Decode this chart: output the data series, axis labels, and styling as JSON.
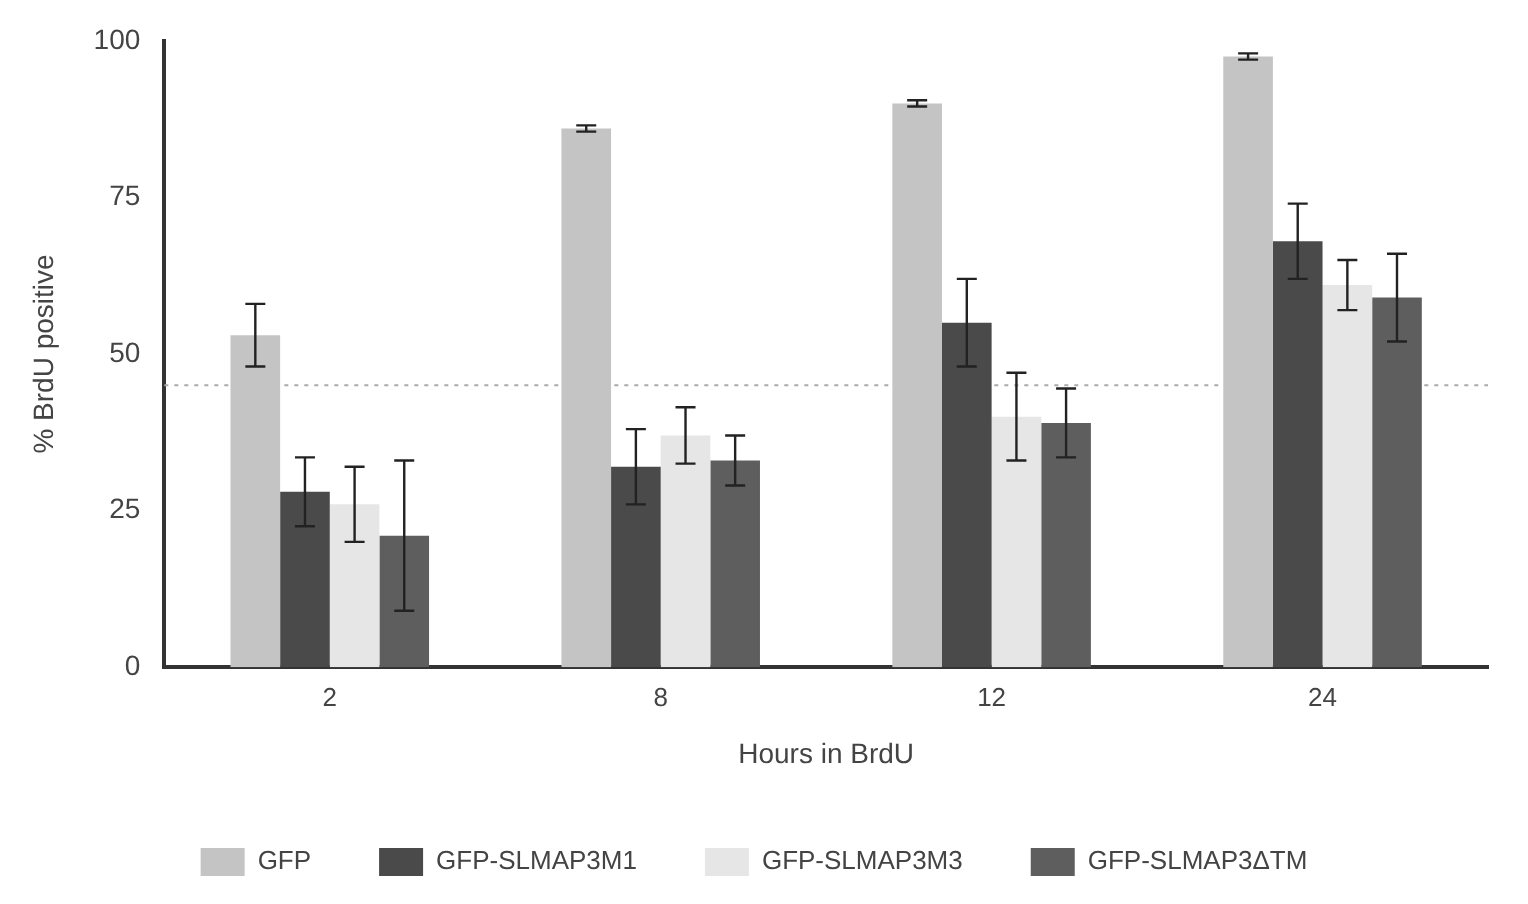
{
  "chart_data": {
    "type": "bar",
    "xlabel": "Hours in BrdU",
    "ylabel": "% BrdU positive",
    "categories": [
      "2",
      "8",
      "12",
      "24"
    ],
    "series": [
      {
        "name": "GFP",
        "color": "#c4c4c4",
        "values": [
          53,
          86,
          90,
          97.5
        ],
        "errors": [
          5,
          0.5,
          0.5,
          0.5
        ]
      },
      {
        "name": "GFP-SLMAP3M1",
        "color": "#4a4a4a",
        "values": [
          28,
          32,
          55,
          68
        ],
        "errors": [
          5.5,
          6,
          7,
          6
        ]
      },
      {
        "name": "GFP-SLMAP3M3",
        "color": "#e6e6e6",
        "values": [
          26,
          37,
          40,
          61
        ],
        "errors": [
          6,
          4.5,
          7,
          4
        ]
      },
      {
        "name": "GFP-SLMAP3ΔTM",
        "color": "#5e5e5e",
        "values": [
          21,
          33,
          39,
          59
        ],
        "errors": [
          12,
          4,
          5.5,
          7
        ]
      }
    ],
    "ylim": [
      0,
      100
    ],
    "yticks": [
      0,
      25,
      50,
      75,
      100
    ],
    "grid": false,
    "legend": "bottom",
    "ref_lines": [
      {
        "axis": "y",
        "value": 45,
        "line_style": "dotted",
        "color": "#aaaaaa"
      }
    ]
  }
}
